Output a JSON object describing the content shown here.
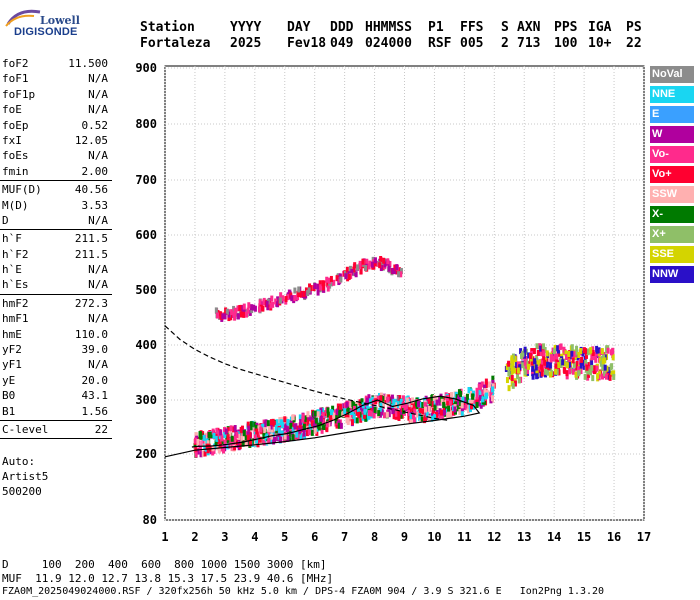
{
  "logo": {
    "line1": "Lowell",
    "line2": "DIGISONDE"
  },
  "header": {
    "labels": [
      "Station",
      "YYYY",
      "DAY",
      "DDD",
      "HHMMSS",
      "P1",
      "FFS",
      "S",
      "AXN",
      "PPS",
      "IGA",
      "PS"
    ],
    "values": [
      "Fortaleza",
      "2025",
      "Fev18",
      "049",
      "024000",
      "RSF",
      "005",
      "2",
      "713",
      "100",
      "10+",
      "22"
    ]
  },
  "params": [
    {
      "group": [
        {
          "k": "foF2",
          "v": "11.500"
        },
        {
          "k": "foF1",
          "v": "N/A"
        },
        {
          "k": "foF1p",
          "v": "N/A"
        },
        {
          "k": "foE",
          "v": "N/A"
        },
        {
          "k": "foEp",
          "v": "0.52"
        },
        {
          "k": "fxI",
          "v": "12.05"
        },
        {
          "k": "foEs",
          "v": "N/A"
        },
        {
          "k": "fmin",
          "v": "2.00"
        }
      ]
    },
    {
      "group": [
        {
          "k": "MUF(D)",
          "v": "40.56"
        },
        {
          "k": "M(D)",
          "v": "3.53"
        },
        {
          "k": "D",
          "v": "N/A"
        }
      ]
    },
    {
      "group": [
        {
          "k": "h`F",
          "v": "211.5"
        },
        {
          "k": "h`F2",
          "v": "211.5"
        },
        {
          "k": "h`E",
          "v": "N/A"
        },
        {
          "k": "h`Es",
          "v": "N/A"
        }
      ]
    },
    {
      "group": [
        {
          "k": "hmF2",
          "v": "272.3"
        },
        {
          "k": "hmF1",
          "v": "N/A"
        },
        {
          "k": "hmE",
          "v": "110.0"
        },
        {
          "k": "yF2",
          "v": "39.0"
        },
        {
          "k": "yF1",
          "v": "N/A"
        },
        {
          "k": "yE",
          "v": "20.0"
        },
        {
          "k": "B0",
          "v": "43.1"
        },
        {
          "k": "B1",
          "v": "1.56"
        }
      ]
    },
    {
      "group": [
        {
          "k": "C-level",
          "v": "22"
        }
      ]
    }
  ],
  "auto": [
    "Auto:",
    "Artist5",
    "500200"
  ],
  "legend": [
    {
      "label": "NoVal",
      "color": "#8c8c8c"
    },
    {
      "label": "NNE",
      "color": "#19d6f2"
    },
    {
      "label": "E",
      "color": "#3aa0ff"
    },
    {
      "label": "W",
      "color": "#b0009e"
    },
    {
      "label": "Vo-",
      "color": "#ff2a8c"
    },
    {
      "label": "Vo+",
      "color": "#ff0030"
    },
    {
      "label": "SSW",
      "color": "#ffb0b0"
    },
    {
      "label": "X-",
      "color": "#007a00"
    },
    {
      "label": "X+",
      "color": "#8fbf68"
    },
    {
      "label": "SSE",
      "color": "#d4d400"
    },
    {
      "label": "NNW",
      "color": "#2a10c8"
    }
  ],
  "footer": {
    "d_row": "D     100  200  400  600  800 1000 1500 3000 [km]",
    "muf_row": "MUF  11.9 12.0 12.7 13.8 15.3 17.5 23.9 40.6 [MHz]",
    "file_row": "FZA0M_2025049024000.RSF / 320fx256h 50 kHz 5.0 km / DPS-4 FZA0M 904 / 3.9 S 321.6 E   Ion2Png 1.3.20"
  },
  "chart_data": {
    "type": "scatter",
    "x_ticks": [
      1,
      2,
      3,
      4,
      5,
      6,
      7,
      8,
      9,
      10,
      11,
      12,
      13,
      14,
      15,
      16,
      17
    ],
    "y_ticks": [
      80,
      200,
      300,
      400,
      500,
      600,
      700,
      800,
      900
    ],
    "xlim": [
      1,
      17
    ],
    "ylim": [
      80,
      900
    ],
    "grid": true,
    "legend_position": "right",
    "trace_high": {
      "color_keys": [
        "Vo+",
        "W",
        "Vo-",
        "NoVal"
      ],
      "points": [
        [
          2.7,
          455
        ],
        [
          3.0,
          455
        ],
        [
          3.3,
          458
        ],
        [
          3.6,
          462
        ],
        [
          4.0,
          468
        ],
        [
          4.4,
          474
        ],
        [
          4.8,
          482
        ],
        [
          5.2,
          488
        ],
        [
          5.6,
          495
        ],
        [
          6.0,
          502
        ],
        [
          6.4,
          510
        ],
        [
          6.8,
          520
        ],
        [
          7.1,
          530
        ],
        [
          7.4,
          538
        ],
        [
          7.7,
          545
        ],
        [
          8.0,
          550
        ],
        [
          8.3,
          548
        ],
        [
          8.6,
          540
        ],
        [
          8.9,
          535
        ]
      ]
    },
    "trace_low": {
      "color_keys": [
        "Vo+",
        "Vo-",
        "W",
        "X-",
        "NNE",
        "SSW"
      ],
      "points": [
        [
          2.0,
          218
        ],
        [
          2.4,
          220
        ],
        [
          2.8,
          225
        ],
        [
          3.2,
          228
        ],
        [
          3.6,
          233
        ],
        [
          4.0,
          237
        ],
        [
          4.4,
          240
        ],
        [
          4.8,
          244
        ],
        [
          5.2,
          248
        ],
        [
          5.6,
          252
        ],
        [
          6.0,
          258
        ],
        [
          6.4,
          263
        ],
        [
          6.8,
          270
        ],
        [
          7.2,
          276
        ],
        [
          7.6,
          282
        ],
        [
          8.0,
          288
        ],
        [
          8.4,
          290
        ],
        [
          8.8,
          286
        ],
        [
          9.2,
          282
        ],
        [
          9.6,
          282
        ],
        [
          10.0,
          286
        ],
        [
          10.4,
          290
        ],
        [
          10.8,
          294
        ],
        [
          11.2,
          300
        ],
        [
          11.6,
          310
        ],
        [
          12.0,
          322
        ]
      ]
    },
    "trace_far": {
      "color_keys": [
        "SSE",
        "Vo-",
        "Vo+",
        "NNW",
        "X+"
      ],
      "points": [
        [
          12.4,
          340
        ],
        [
          12.8,
          360
        ],
        [
          13.2,
          368
        ],
        [
          13.6,
          372
        ],
        [
          14.0,
          372
        ],
        [
          14.4,
          370
        ],
        [
          14.8,
          368
        ],
        [
          15.2,
          365
        ],
        [
          15.6,
          366
        ],
        [
          16.0,
          368
        ]
      ]
    },
    "profile_dashed": [
      [
        1,
        435
      ],
      [
        1.5,
        410
      ],
      [
        2,
        392
      ],
      [
        2.5,
        378
      ],
      [
        3,
        366
      ],
      [
        3.5,
        356
      ],
      [
        4,
        348
      ],
      [
        4.5,
        340
      ],
      [
        5,
        332
      ],
      [
        5.5,
        324
      ],
      [
        6,
        316
      ],
      [
        6.5,
        309
      ],
      [
        7,
        302
      ],
      [
        7.5,
        296
      ],
      [
        8,
        290
      ],
      [
        8.5,
        284
      ],
      [
        9,
        278
      ],
      [
        9.5,
        272
      ],
      [
        10,
        266
      ],
      [
        10.5,
        262
      ]
    ],
    "profile_solid": [
      [
        1,
        195
      ],
      [
        2,
        207
      ],
      [
        3,
        212
      ],
      [
        4,
        217
      ],
      [
        5,
        223
      ],
      [
        6,
        230
      ],
      [
        7,
        239
      ],
      [
        8,
        248
      ],
      [
        9,
        255
      ],
      [
        10,
        262
      ],
      [
        11,
        270
      ],
      [
        11.5,
        276
      ],
      [
        11.3,
        290
      ],
      [
        11.0,
        296
      ],
      [
        10.7,
        302
      ],
      [
        10.2,
        307
      ],
      [
        9.6,
        302
      ],
      [
        9.1,
        294
      ],
      [
        8.6,
        288
      ],
      [
        8.1,
        300
      ],
      [
        7.6,
        290
      ],
      [
        7.1,
        275
      ],
      [
        6.6,
        262
      ],
      [
        6.1,
        252
      ],
      [
        5.6,
        245
      ],
      [
        5.1,
        238
      ],
      [
        4.6,
        234
      ],
      [
        4.1,
        228
      ],
      [
        3.6,
        222
      ],
      [
        3.1,
        218
      ],
      [
        2.6,
        215
      ],
      [
        2.1,
        214
      ],
      [
        1.9,
        213
      ]
    ]
  }
}
